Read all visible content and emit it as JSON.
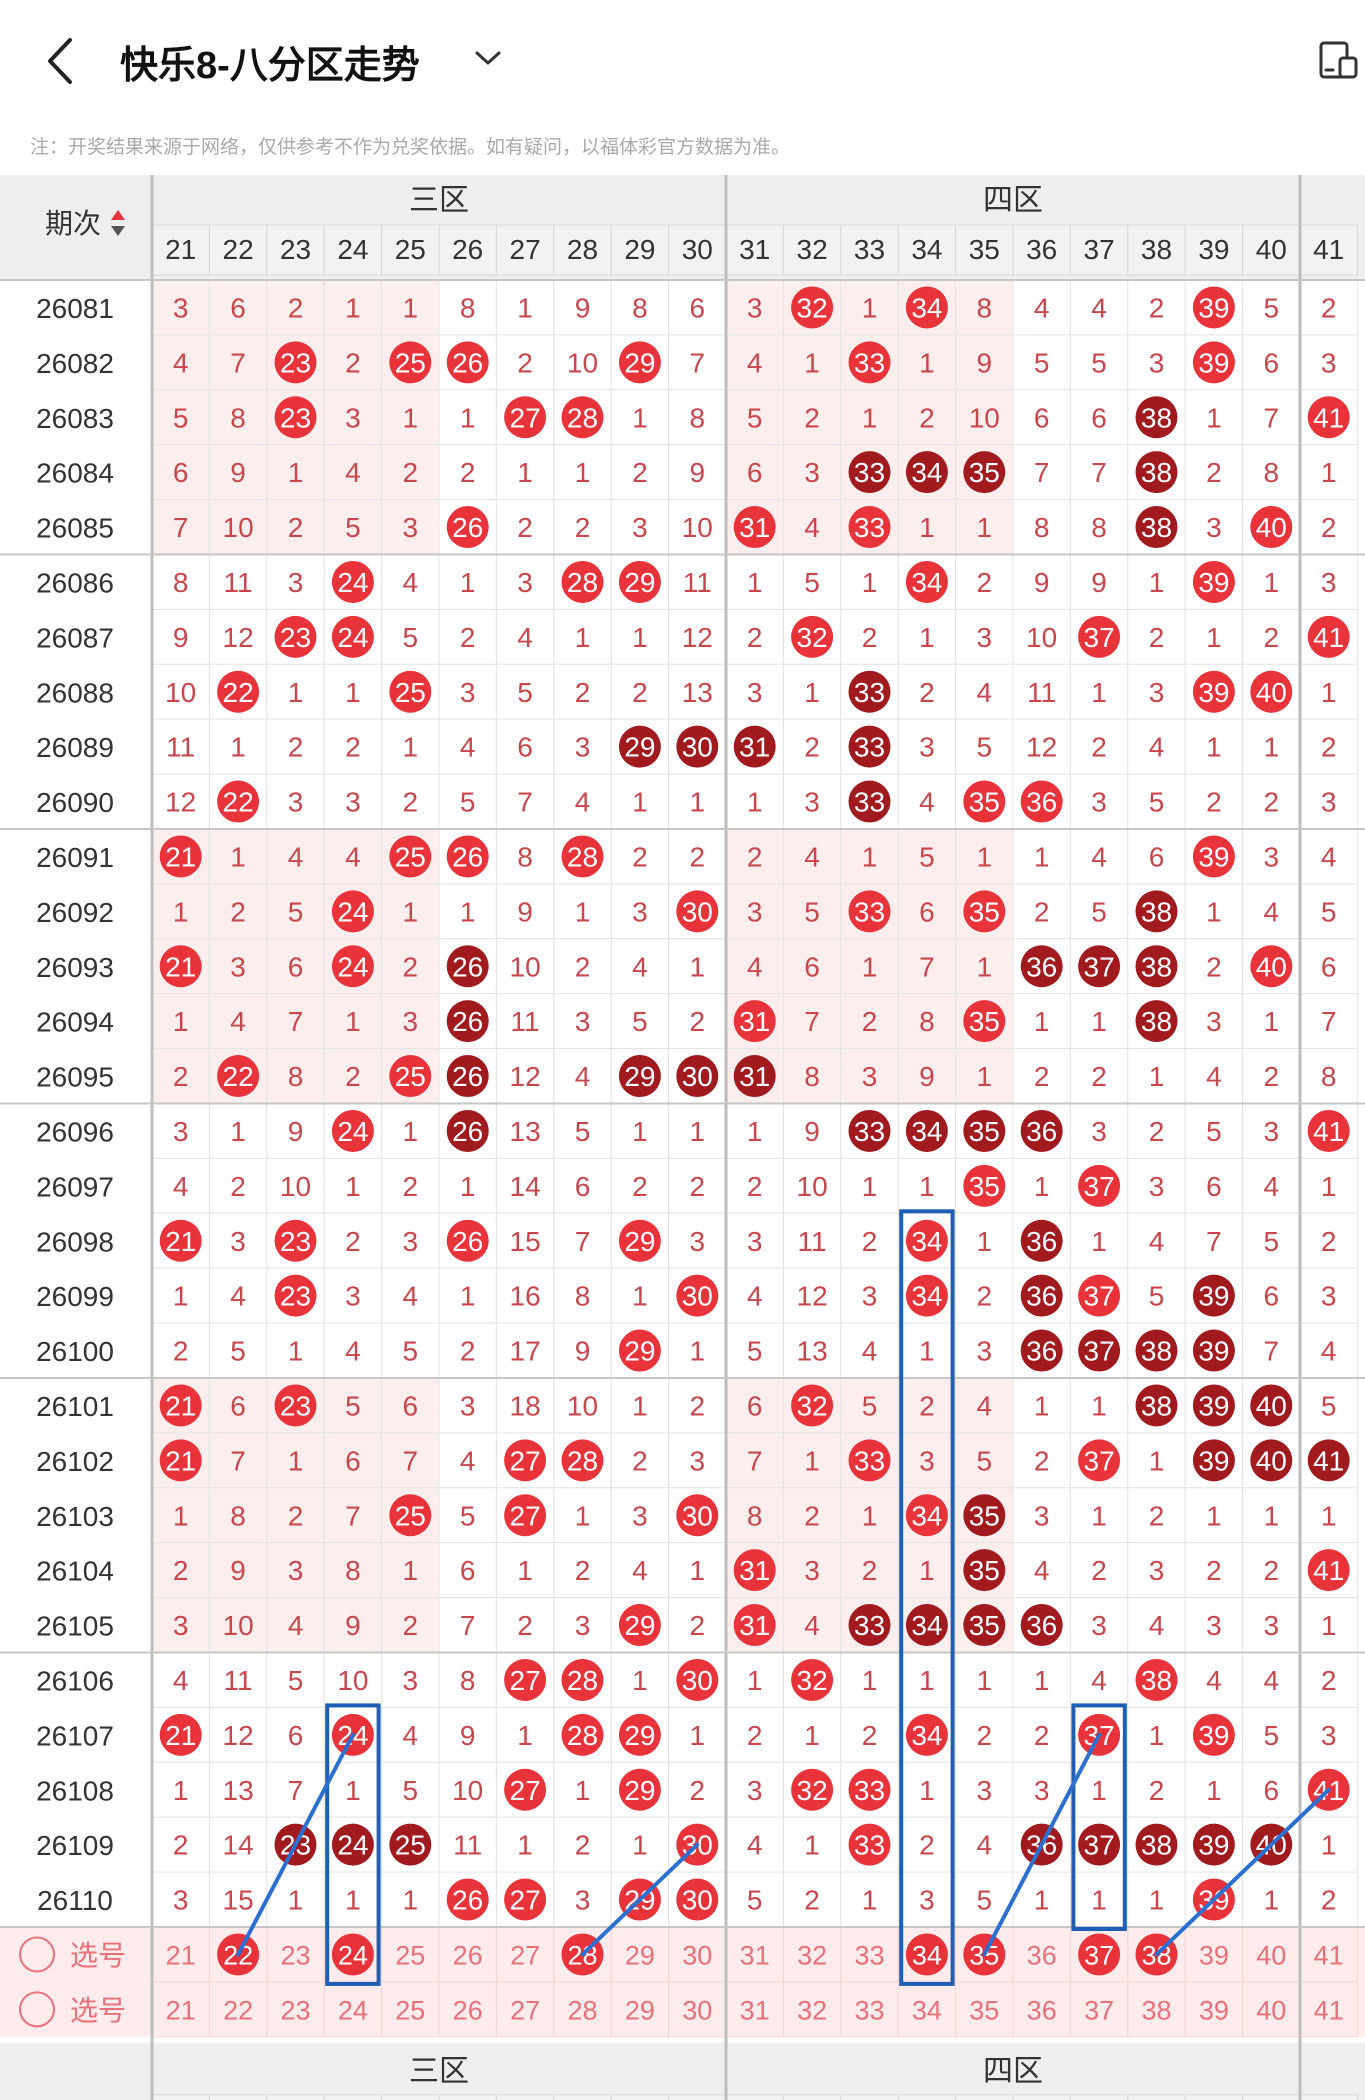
{
  "header": {
    "title": "快乐8-八分区走势",
    "back_icon": "back-arrow-icon",
    "dropdown_icon": "chevron-down-icon",
    "panel_icon": "split-view-icon"
  },
  "note": "注：开奖结果来源于网络，仅供参考不作为兑奖依据。如有疑问，以福体彩官方数据为准。",
  "table": {
    "period_header": "期次",
    "sort_icon": "sort-arrows-icon",
    "zones": [
      {
        "name": "三区",
        "numbers": [
          "21",
          "22",
          "23",
          "24",
          "25",
          "26",
          "27",
          "28",
          "29",
          "30"
        ]
      },
      {
        "name": "四区",
        "numbers": [
          "31",
          "32",
          "33",
          "34",
          "35",
          "36",
          "37",
          "38",
          "39",
          "40"
        ]
      },
      {
        "name": "",
        "numbers": [
          "41"
        ]
      }
    ],
    "rows": [
      {
        "period": "26081",
        "cells": [
          "3",
          "6",
          "2",
          "1",
          "1",
          "8",
          "1",
          "9",
          "8",
          "6",
          "3",
          "32",
          "1",
          "34",
          "8",
          "4",
          "4",
          "2",
          "39",
          "5",
          "2"
        ],
        "dark": []
      },
      {
        "period": "26082",
        "cells": [
          "4",
          "7",
          "23",
          "2",
          "25",
          "26",
          "2",
          "10",
          "29",
          "7",
          "4",
          "1",
          "33",
          "1",
          "9",
          "5",
          "5",
          "3",
          "39",
          "6",
          "3"
        ],
        "dark": []
      },
      {
        "period": "26083",
        "cells": [
          "5",
          "8",
          "23",
          "3",
          "1",
          "1",
          "27",
          "28",
          "1",
          "8",
          "5",
          "2",
          "1",
          "2",
          "10",
          "6",
          "6",
          "38",
          "1",
          "7",
          "41"
        ],
        "dark": [
          "38"
        ]
      },
      {
        "period": "26084",
        "cells": [
          "6",
          "9",
          "1",
          "4",
          "2",
          "2",
          "1",
          "1",
          "2",
          "9",
          "6",
          "3",
          "33",
          "34",
          "35",
          "7",
          "7",
          "38",
          "2",
          "8",
          "1"
        ],
        "dark": [
          "33",
          "34",
          "35",
          "38"
        ]
      },
      {
        "period": "26085",
        "cells": [
          "7",
          "10",
          "2",
          "5",
          "3",
          "26",
          "2",
          "2",
          "3",
          "10",
          "31",
          "4",
          "33",
          "1",
          "1",
          "8",
          "8",
          "38",
          "3",
          "40",
          "2"
        ],
        "dark": [
          "38"
        ]
      },
      {
        "period": "26086",
        "cells": [
          "8",
          "11",
          "3",
          "24",
          "4",
          "1",
          "3",
          "28",
          "29",
          "11",
          "1",
          "5",
          "1",
          "34",
          "2",
          "9",
          "9",
          "1",
          "39",
          "1",
          "3"
        ],
        "dark": []
      },
      {
        "period": "26087",
        "cells": [
          "9",
          "12",
          "23",
          "24",
          "5",
          "2",
          "4",
          "1",
          "1",
          "12",
          "2",
          "32",
          "2",
          "1",
          "3",
          "10",
          "37",
          "2",
          "1",
          "2",
          "41"
        ],
        "dark": []
      },
      {
        "period": "26088",
        "cells": [
          "10",
          "22",
          "1",
          "1",
          "25",
          "3",
          "5",
          "2",
          "2",
          "13",
          "3",
          "1",
          "33",
          "2",
          "4",
          "11",
          "1",
          "3",
          "39",
          "40",
          "1"
        ],
        "dark": [
          "33"
        ]
      },
      {
        "period": "26089",
        "cells": [
          "11",
          "1",
          "2",
          "2",
          "1",
          "4",
          "6",
          "3",
          "29",
          "30",
          "31",
          "2",
          "33",
          "3",
          "5",
          "12",
          "2",
          "4",
          "1",
          "1",
          "2"
        ],
        "dark": [
          "29",
          "30",
          "31",
          "33"
        ]
      },
      {
        "period": "26090",
        "cells": [
          "12",
          "22",
          "3",
          "3",
          "2",
          "5",
          "7",
          "4",
          "1",
          "1",
          "1",
          "3",
          "33",
          "4",
          "35",
          "36",
          "3",
          "5",
          "2",
          "2",
          "3"
        ],
        "dark": [
          "33"
        ]
      },
      {
        "period": "26091",
        "cells": [
          "21",
          "1",
          "4",
          "4",
          "25",
          "26",
          "8",
          "28",
          "2",
          "2",
          "2",
          "4",
          "1",
          "5",
          "1",
          "1",
          "4",
          "6",
          "39",
          "3",
          "4"
        ],
        "dark": []
      },
      {
        "period": "26092",
        "cells": [
          "1",
          "2",
          "5",
          "24",
          "1",
          "1",
          "9",
          "1",
          "3",
          "30",
          "3",
          "5",
          "33",
          "6",
          "35",
          "2",
          "5",
          "38",
          "1",
          "4",
          "5"
        ],
        "dark": [
          "38"
        ]
      },
      {
        "period": "26093",
        "cells": [
          "21",
          "3",
          "6",
          "24",
          "2",
          "26",
          "10",
          "2",
          "4",
          "1",
          "4",
          "6",
          "1",
          "7",
          "1",
          "36",
          "37",
          "38",
          "2",
          "40",
          "6"
        ],
        "dark": [
          "26",
          "36",
          "37",
          "38"
        ]
      },
      {
        "period": "26094",
        "cells": [
          "1",
          "4",
          "7",
          "1",
          "3",
          "26",
          "11",
          "3",
          "5",
          "2",
          "31",
          "7",
          "2",
          "8",
          "35",
          "1",
          "1",
          "38",
          "3",
          "1",
          "7"
        ],
        "dark": [
          "26",
          "38"
        ]
      },
      {
        "period": "26095",
        "cells": [
          "2",
          "22",
          "8",
          "2",
          "25",
          "26",
          "12",
          "4",
          "29",
          "30",
          "31",
          "8",
          "3",
          "9",
          "1",
          "2",
          "2",
          "1",
          "4",
          "2",
          "8"
        ],
        "dark": [
          "26",
          "29",
          "30",
          "31"
        ]
      },
      {
        "period": "26096",
        "cells": [
          "3",
          "1",
          "9",
          "24",
          "1",
          "26",
          "13",
          "5",
          "1",
          "1",
          "1",
          "9",
          "33",
          "34",
          "35",
          "36",
          "3",
          "2",
          "5",
          "3",
          "41"
        ],
        "dark": [
          "26",
          "33",
          "34",
          "35",
          "36"
        ]
      },
      {
        "period": "26097",
        "cells": [
          "4",
          "2",
          "10",
          "1",
          "2",
          "1",
          "14",
          "6",
          "2",
          "2",
          "2",
          "10",
          "1",
          "1",
          "35",
          "1",
          "37",
          "3",
          "6",
          "4",
          "1"
        ],
        "dark": []
      },
      {
        "period": "26098",
        "cells": [
          "21",
          "3",
          "23",
          "2",
          "3",
          "26",
          "15",
          "7",
          "29",
          "3",
          "3",
          "11",
          "2",
          "34",
          "1",
          "36",
          "1",
          "4",
          "7",
          "5",
          "2"
        ],
        "dark": [
          "36"
        ]
      },
      {
        "period": "26099",
        "cells": [
          "1",
          "4",
          "23",
          "3",
          "4",
          "1",
          "16",
          "8",
          "1",
          "30",
          "4",
          "12",
          "3",
          "34",
          "2",
          "36",
          "37",
          "5",
          "39",
          "6",
          "3"
        ],
        "dark": [
          "36",
          "39"
        ]
      },
      {
        "period": "26100",
        "cells": [
          "2",
          "5",
          "1",
          "4",
          "5",
          "2",
          "17",
          "9",
          "29",
          "1",
          "5",
          "13",
          "4",
          "1",
          "3",
          "36",
          "37",
          "38",
          "39",
          "7",
          "4"
        ],
        "dark": [
          "36",
          "37",
          "38",
          "39"
        ]
      },
      {
        "period": "26101",
        "cells": [
          "21",
          "6",
          "23",
          "5",
          "6",
          "3",
          "18",
          "10",
          "1",
          "2",
          "6",
          "32",
          "5",
          "2",
          "4",
          "1",
          "1",
          "38",
          "39",
          "40",
          "5"
        ],
        "dark": [
          "38",
          "39",
          "40"
        ]
      },
      {
        "period": "26102",
        "cells": [
          "21",
          "7",
          "1",
          "6",
          "7",
          "4",
          "27",
          "28",
          "2",
          "3",
          "7",
          "1",
          "33",
          "3",
          "5",
          "2",
          "37",
          "1",
          "39",
          "40",
          "41"
        ],
        "dark": [
          "39",
          "40",
          "41"
        ]
      },
      {
        "period": "26103",
        "cells": [
          "1",
          "8",
          "2",
          "7",
          "25",
          "5",
          "27",
          "1",
          "3",
          "30",
          "8",
          "2",
          "1",
          "34",
          "35",
          "3",
          "1",
          "2",
          "1",
          "1",
          "1"
        ],
        "dark": [
          "35"
        ]
      },
      {
        "period": "26104",
        "cells": [
          "2",
          "9",
          "3",
          "8",
          "1",
          "6",
          "1",
          "2",
          "4",
          "1",
          "31",
          "3",
          "2",
          "1",
          "35",
          "4",
          "2",
          "3",
          "2",
          "2",
          "41"
        ],
        "dark": [
          "35"
        ]
      },
      {
        "period": "26105",
        "cells": [
          "3",
          "10",
          "4",
          "9",
          "2",
          "7",
          "2",
          "3",
          "29",
          "2",
          "31",
          "4",
          "33",
          "34",
          "35",
          "36",
          "3",
          "4",
          "3",
          "3",
          "1"
        ],
        "dark": [
          "33",
          "34",
          "35",
          "36"
        ]
      },
      {
        "period": "26106",
        "cells": [
          "4",
          "11",
          "5",
          "10",
          "3",
          "8",
          "27",
          "28",
          "1",
          "30",
          "1",
          "32",
          "1",
          "1",
          "1",
          "1",
          "4",
          "38",
          "4",
          "4",
          "2"
        ],
        "dark": []
      },
      {
        "period": "26107",
        "cells": [
          "21",
          "12",
          "6",
          "24",
          "4",
          "9",
          "1",
          "28",
          "29",
          "1",
          "2",
          "1",
          "2",
          "34",
          "2",
          "2",
          "37",
          "1",
          "39",
          "5",
          "3"
        ],
        "dark": []
      },
      {
        "period": "26108",
        "cells": [
          "1",
          "13",
          "7",
          "1",
          "5",
          "10",
          "27",
          "1",
          "29",
          "2",
          "3",
          "32",
          "33",
          "1",
          "3",
          "3",
          "1",
          "2",
          "1",
          "6",
          "41"
        ],
        "dark": []
      },
      {
        "period": "26109",
        "cells": [
          "2",
          "14",
          "23",
          "24",
          "25",
          "11",
          "1",
          "2",
          "1",
          "30",
          "4",
          "1",
          "33",
          "2",
          "4",
          "36",
          "37",
          "38",
          "39",
          "40",
          "1"
        ],
        "dark": [
          "23",
          "24",
          "25",
          "36",
          "37",
          "38",
          "39",
          "40"
        ]
      },
      {
        "period": "26110",
        "cells": [
          "3",
          "15",
          "1",
          "1",
          "1",
          "26",
          "27",
          "3",
          "29",
          "30",
          "5",
          "2",
          "1",
          "3",
          "5",
          "1",
          "1",
          "1",
          "39",
          "1",
          "2"
        ],
        "dark": []
      }
    ],
    "select_rows": [
      {
        "label": "选号",
        "selected": [
          "22",
          "24",
          "28",
          "34",
          "35",
          "37",
          "38"
        ]
      },
      {
        "label": "选号",
        "selected": []
      }
    ],
    "footer_zones": [
      "三区",
      "四区"
    ],
    "footer_period": "-",
    "highlight_boxes": [
      {
        "number": "24",
        "from_period": "26107",
        "to_period": "选号"
      },
      {
        "number": "34",
        "from_period": "26098",
        "to_period": "选号"
      },
      {
        "number": "37",
        "from_period": "26107",
        "to_period": "26110"
      }
    ],
    "trend_lines": [
      {
        "from": [
          "26107",
          "24"
        ],
        "to": [
          "选号",
          "22"
        ]
      },
      {
        "from": [
          "26109",
          "30"
        ],
        "to": [
          "选号",
          "28"
        ]
      },
      {
        "from": [
          "26107",
          "37"
        ],
        "to": [
          "选号",
          "35"
        ]
      },
      {
        "from": [
          "26108",
          "41"
        ],
        "to": [
          "选号",
          "38"
        ]
      }
    ]
  },
  "colors": {
    "ball_red": "#e8333a",
    "ball_dark": "#a11a1e",
    "miss_text": "#c8474d",
    "select_text": "#e8707a",
    "row_stripe": "#fdeeee",
    "select_bg": "#fdeceb",
    "box_blue": "#1e5fb5",
    "line_blue": "#2b6fd0"
  }
}
